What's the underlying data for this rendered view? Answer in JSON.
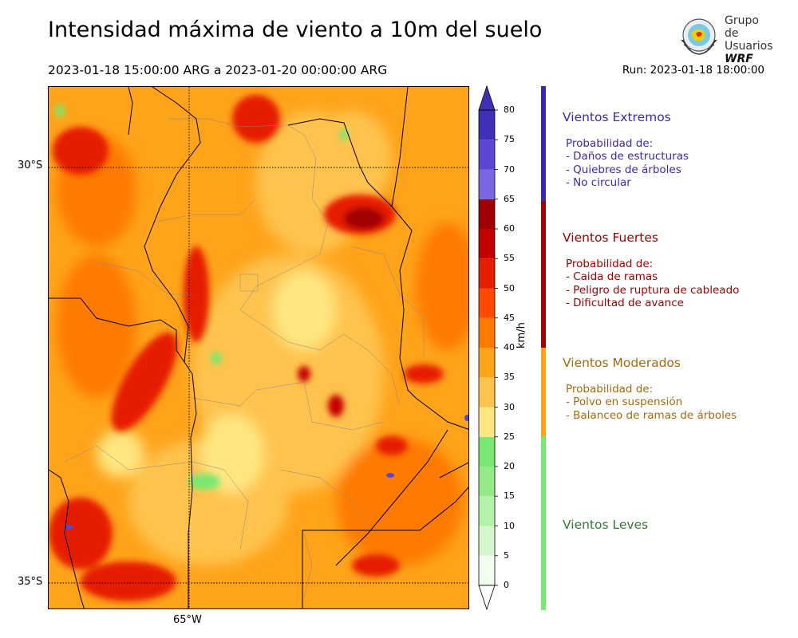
{
  "header": {
    "title": "Intensidad máxima de viento a 10m del suelo",
    "subtitle": "2023-01-18 15:00:00 ARG  a  2023-01-20 00:00:00 ARG",
    "run": "Run: 2023-01-18 18:00:00"
  },
  "logo": {
    "line1": "Grupo de",
    "line2": "Usuarios",
    "line3": "WRF"
  },
  "map": {
    "lat_labels": [
      "30°S",
      "35°S"
    ],
    "lon_labels": [
      "65°W"
    ]
  },
  "colorbar": {
    "unit": "km/h",
    "ticks": [
      "0",
      "5",
      "10",
      "15",
      "20",
      "25",
      "30",
      "35",
      "40",
      "45",
      "50",
      "55",
      "60",
      "65",
      "70",
      "75",
      "80"
    ],
    "colors": [
      "#f0fff0",
      "#d4f8cc",
      "#b4f2a8",
      "#94ec88",
      "#78e870",
      "#ffe680",
      "#ffc34d",
      "#ffa31a",
      "#ff7a00",
      "#ff4a00",
      "#e61e00",
      "#c40000",
      "#a00000",
      "#7a66e0",
      "#5a46d0",
      "#4030b8"
    ]
  },
  "categories": [
    {
      "title": "Vientos Extremos",
      "color": "#3c2aa8",
      "lines": [
        "Probabilidad de:",
        "- Daños de estructuras",
        "- Quiebres de árboles",
        "- No circular"
      ]
    },
    {
      "title": "Vientos Fuertes",
      "color": "#a00000",
      "lines": [
        "Probabilidad de:",
        "- Caida de ramas",
        "- Peligro de ruptura de cableado",
        "- Dificultad de avance"
      ]
    },
    {
      "title": "Vientos Moderados",
      "color": "#a86a0a",
      "bar_color": "#ffa31a",
      "lines": [
        "Probabilidad de:",
        "- Polvo en suspensión",
        "- Balanceo de ramas de árboles"
      ]
    },
    {
      "title": "Vientos Leves",
      "color": "#2e7d32",
      "bar_color": "#78e870",
      "lines": []
    }
  ]
}
